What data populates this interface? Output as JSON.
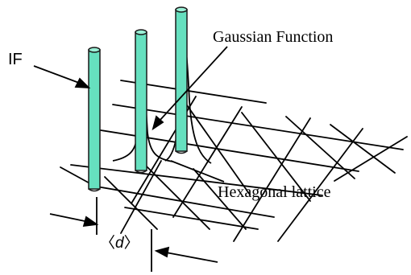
{
  "labels": {
    "if_label": "IF",
    "gaussian_label": "Gaussian Function",
    "lattice_label": "Hexagonal lattice",
    "spacing_open": "〈",
    "spacing_var": "d",
    "spacing_close": "〉"
  },
  "colors": {
    "pillar_fill": "#66e0bf",
    "pillar_stroke": "#1a1a1a",
    "line": "#000000",
    "background": "#ffffff"
  }
}
